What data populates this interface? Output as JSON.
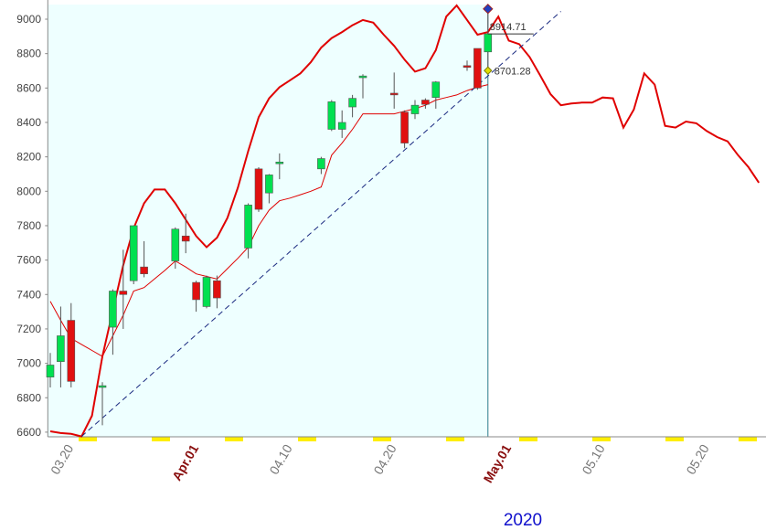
{
  "chart_data": {
    "type": "candlestick",
    "year_label": "2020",
    "categories": [
      null,
      null,
      "03.20",
      null,
      null,
      null,
      null,
      null,
      null,
      null,
      null,
      null,
      null,
      null,
      "Apr.01",
      null,
      null,
      null,
      null,
      null,
      null,
      null,
      null,
      "04.10",
      null,
      null,
      null,
      null,
      null,
      null,
      null,
      null,
      null,
      "04.20",
      null,
      null,
      null,
      null,
      null,
      null,
      null,
      null,
      null,
      null,
      "May.01",
      null,
      null,
      null,
      null,
      null,
      null,
      null,
      null,
      "05.10",
      null,
      null,
      null,
      null,
      null,
      null,
      null,
      null,
      null,
      "05.20",
      null,
      null,
      null,
      null,
      null
    ],
    "open": [
      6920,
      7010,
      7250,
      null,
      null,
      6860,
      7210,
      7420,
      7480,
      7560,
      null,
      null,
      7595,
      7740,
      7470,
      7330,
      7480,
      null,
      null,
      7670,
      8130,
      7990,
      8160,
      null,
      null,
      null,
      8130,
      8360,
      8360,
      8490,
      8660,
      null,
      null,
      8570,
      8460,
      8450,
      8530,
      8545,
      null,
      null,
      8730,
      8830,
      8810,
      null,
      null,
      null,
      null,
      null,
      null,
      null,
      null,
      null,
      null,
      null,
      null,
      null,
      null,
      null,
      null,
      null,
      null,
      null,
      null,
      null,
      null,
      null,
      null,
      null,
      null
    ],
    "high": [
      7060,
      7330,
      7350,
      null,
      null,
      6890,
      7430,
      7660,
      7800,
      7710,
      null,
      null,
      7790,
      7870,
      7480,
      7510,
      7510,
      null,
      null,
      7930,
      8140,
      8100,
      8220,
      null,
      null,
      null,
      8200,
      8530,
      8470,
      8560,
      8680,
      null,
      null,
      8690,
      8470,
      8530,
      8540,
      8640,
      null,
      null,
      8760,
      8830,
      9060,
      null,
      null,
      null,
      null,
      null,
      null,
      null,
      null,
      null,
      null,
      null,
      null,
      null,
      null,
      null,
      null,
      null,
      null,
      null,
      null,
      null,
      null,
      null,
      null,
      null,
      null
    ],
    "low": [
      6860,
      6860,
      6860,
      null,
      null,
      6640,
      7050,
      7200,
      7460,
      7500,
      null,
      null,
      7550,
      7640,
      7300,
      7320,
      7320,
      null,
      null,
      7610,
      7880,
      7930,
      8070,
      null,
      null,
      null,
      8100,
      8350,
      8310,
      8430,
      8540,
      null,
      null,
      8480,
      8250,
      8420,
      8480,
      8480,
      null,
      null,
      8700,
      8590,
      8701.28,
      null,
      null,
      null,
      null,
      null,
      null,
      null,
      null,
      null,
      null,
      null,
      null,
      null,
      null,
      null,
      null,
      null,
      null,
      null,
      null,
      null,
      null,
      null,
      null,
      null,
      null
    ],
    "close": [
      6990,
      7160,
      6895,
      null,
      null,
      6870,
      7420,
      7400,
      7800,
      7520,
      null,
      null,
      7780,
      7710,
      7370,
      7500,
      7380,
      null,
      null,
      7920,
      7895,
      8095,
      8170,
      null,
      null,
      null,
      8190,
      8520,
      8400,
      8540,
      8670,
      null,
      null,
      8560,
      8280,
      8500,
      8505,
      8635,
      null,
      null,
      8720,
      8600,
      8914.71,
      null,
      null,
      null,
      null,
      null,
      null,
      null,
      null,
      null,
      null,
      null,
      null,
      null,
      null,
      null,
      null,
      null,
      null,
      null,
      null,
      null,
      null,
      null,
      null,
      null,
      null
    ],
    "up_color": "#00e050",
    "down_color": "#e01010",
    "lines": [
      {
        "color": "#e00000",
        "width": 2,
        "values": [
          6605,
          6595,
          6590,
          6575,
          6695,
          7040,
          7305,
          7570,
          7785,
          7930,
          8010,
          8010,
          7930,
          7835,
          7740,
          7675,
          7730,
          7845,
          8020,
          8235,
          8430,
          8540,
          8605,
          8645,
          8685,
          8750,
          8835,
          8890,
          8925,
          8965,
          8995,
          8980,
          8910,
          8845,
          8765,
          8695,
          8715,
          8820,
          9015,
          9080,
          8995,
          8910,
          8925,
          9015,
          8875,
          8855,
          8780,
          8675,
          8565,
          8500,
          8510,
          8515,
          8515,
          8545,
          8540,
          8370,
          8475,
          8685,
          8620,
          8380,
          8370,
          8405,
          8395,
          8350,
          8315,
          8290,
          8210,
          8140,
          8050
        ]
      },
      {
        "color": "#e00000",
        "width": 1,
        "values": [
          7360,
          7250,
          7145,
          7110,
          7075,
          7040,
          7160,
          7280,
          7420,
          7440,
          7490,
          7540,
          7595,
          7560,
          7520,
          7505,
          7490,
          7550,
          7610,
          7675,
          7800,
          7890,
          7945,
          7960,
          7980,
          8000,
          8025,
          8210,
          8280,
          8360,
          8450,
          8450,
          8450,
          8450,
          8465,
          8480,
          8500,
          8530,
          8545,
          8560,
          8585,
          8605,
          8620,
          null,
          null,
          null,
          null,
          null,
          null,
          null,
          null,
          null,
          null,
          null,
          null,
          null,
          null,
          null,
          null,
          null,
          null,
          null,
          null,
          null,
          null,
          null,
          null,
          null,
          null
        ]
      },
      {
        "color": "#1a2a80",
        "width": 1,
        "dashed": true,
        "values": [
          null,
          null,
          null,
          6575,
          6629,
          6682,
          6736,
          6790,
          6843,
          6897,
          6951,
          7005,
          7058,
          7112,
          7166,
          7219,
          7273,
          7327,
          7381,
          7434,
          7488,
          7542,
          7595,
          7649,
          7703,
          7757,
          7810,
          7864,
          7918,
          7971,
          8025,
          8079,
          8133,
          8186,
          8240,
          8294,
          8347,
          8401,
          8455,
          8509,
          8562,
          8616,
          8670,
          8723,
          8777,
          8831,
          8884,
          8938,
          8992,
          9045,
          null,
          null,
          null,
          null,
          null,
          null,
          null,
          null,
          null,
          null,
          null,
          null,
          null,
          null,
          null,
          null,
          null,
          null,
          null
        ]
      }
    ],
    "annotations": [
      {
        "text": "8914.71",
        "value": 8914.71,
        "index": 42
      },
      {
        "text": "8701.28",
        "value": 8701.28,
        "index": 42
      }
    ],
    "ylim": [
      6573,
      9085
    ],
    "yticks": [
      6600,
      6800,
      7000,
      7200,
      7400,
      7600,
      7800,
      8000,
      8200,
      8400,
      8600,
      8800,
      9000
    ],
    "background": "#eeffff"
  }
}
